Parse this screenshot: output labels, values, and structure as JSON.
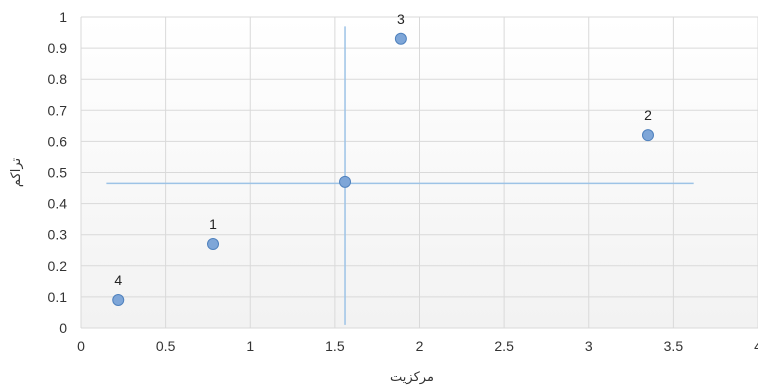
{
  "chart_data": {
    "type": "scatter",
    "title": "",
    "xlabel": "مرکزیت",
    "ylabel": "تراکم",
    "xlim": [
      0,
      4
    ],
    "ylim": [
      0,
      1
    ],
    "x_ticks": [
      "0",
      "0.5",
      "1",
      "1.5",
      "2",
      "2.5",
      "3",
      "3.5",
      "4"
    ],
    "y_ticks": [
      "0",
      "0.1",
      "0.2",
      "0.3",
      "0.4",
      "0.5",
      "0.6",
      "0.7",
      "0.8",
      "0.9",
      "1"
    ],
    "grid": true,
    "legend": "none",
    "colors": {
      "marker_fill": "#7ea6d8",
      "marker_stroke": "#4f81bd",
      "reference_line": "#9dc3e6",
      "grid": "#d9d9d9",
      "plot_background_top": "#ffffff",
      "plot_background_bottom": "#f2f2f2"
    },
    "points": [
      {
        "label": "1",
        "x": 0.78,
        "y": 0.27
      },
      {
        "label": "2",
        "x": 3.35,
        "y": 0.62
      },
      {
        "label": "3",
        "x": 1.89,
        "y": 0.93
      },
      {
        "label": "4",
        "x": 0.22,
        "y": 0.09
      },
      {
        "label": "",
        "x": 1.56,
        "y": 0.47
      }
    ],
    "reference_lines": [
      {
        "orientation": "vertical",
        "x": 1.56,
        "y_from": 0.01,
        "y_to": 0.97
      },
      {
        "orientation": "horizontal",
        "y": 0.465,
        "x_from": 0.15,
        "x_to": 3.62
      }
    ]
  }
}
